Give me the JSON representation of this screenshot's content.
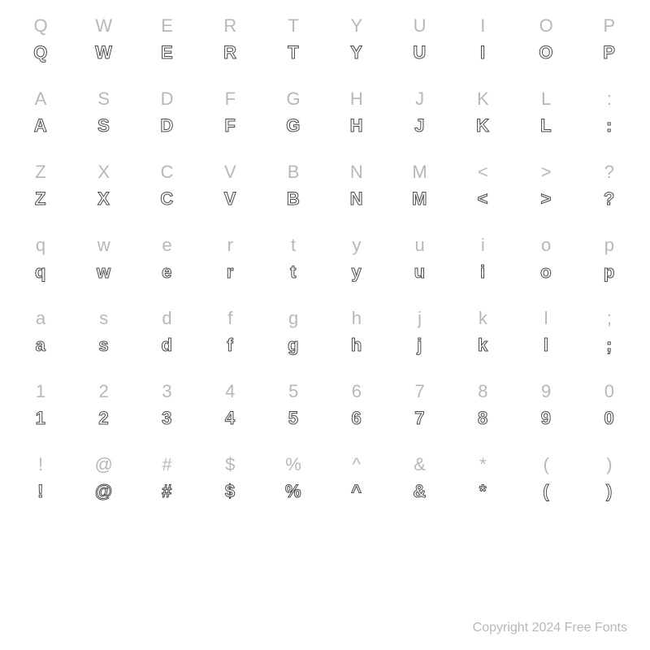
{
  "label_color": "#b8b8b8",
  "outline_stroke_color": "#4a4a4a",
  "outline_fill_color": "#ffffff",
  "background_color": "#ffffff",
  "label_fontsize": 22,
  "outline_fontsize": 22,
  "columns": 10,
  "rows": [
    {
      "chars": [
        "Q",
        "W",
        "E",
        "R",
        "T",
        "Y",
        "U",
        "I",
        "O",
        "P"
      ]
    },
    {
      "chars": [
        "A",
        "S",
        "D",
        "F",
        "G",
        "H",
        "J",
        "K",
        "L",
        ":"
      ]
    },
    {
      "chars": [
        "Z",
        "X",
        "C",
        "V",
        "B",
        "N",
        "M",
        "<",
        ">",
        "?"
      ]
    },
    {
      "chars": [
        "q",
        "w",
        "e",
        "r",
        "t",
        "y",
        "u",
        "i",
        "o",
        "p"
      ]
    },
    {
      "chars": [
        "a",
        "s",
        "d",
        "f",
        "g",
        "h",
        "j",
        "k",
        "l",
        ";"
      ]
    },
    {
      "chars": [
        "1",
        "2",
        "3",
        "4",
        "5",
        "6",
        "7",
        "8",
        "9",
        "0"
      ]
    },
    {
      "chars": [
        "!",
        "@",
        "#",
        "$",
        "%",
        "^",
        "&",
        "*",
        "(",
        ")"
      ]
    }
  ],
  "copyright": "Copyright 2024 Free Fonts"
}
